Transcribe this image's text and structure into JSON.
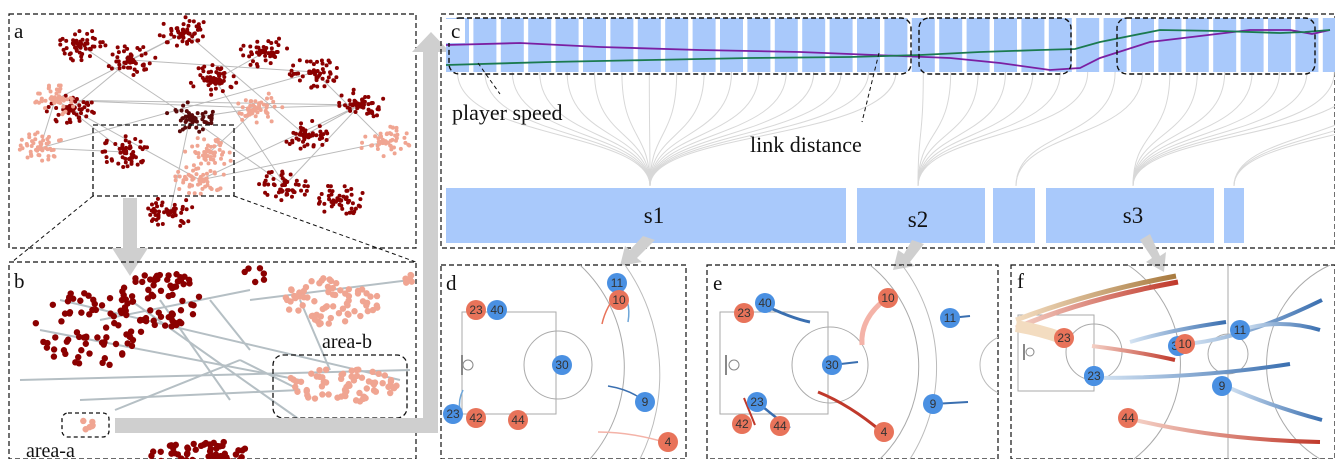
{
  "panels": {
    "a": {
      "label": "a"
    },
    "b": {
      "label": "b",
      "area_a": "area-a",
      "area_b": "area-b"
    },
    "c": {
      "label": "c",
      "annotation_speed": "player speed",
      "annotation_link": "link distance",
      "segments": [
        "s1",
        "s2",
        "s3"
      ]
    },
    "d": {
      "label": "d",
      "players": [
        {
          "num": "11",
          "team": "blue"
        },
        {
          "num": "10",
          "team": "red"
        },
        {
          "num": "23",
          "team": "red"
        },
        {
          "num": "40",
          "team": "blue"
        },
        {
          "num": "30",
          "team": "blue"
        },
        {
          "num": "9",
          "team": "blue"
        },
        {
          "num": "23",
          "team": "blue"
        },
        {
          "num": "42",
          "team": "red"
        },
        {
          "num": "44",
          "team": "red"
        },
        {
          "num": "4",
          "team": "red"
        }
      ]
    },
    "e": {
      "label": "e",
      "players": [
        {
          "num": "10",
          "team": "red"
        },
        {
          "num": "23",
          "team": "red"
        },
        {
          "num": "40",
          "team": "blue"
        },
        {
          "num": "30",
          "team": "blue"
        },
        {
          "num": "11",
          "team": "blue"
        },
        {
          "num": "23",
          "team": "blue"
        },
        {
          "num": "42",
          "team": "red"
        },
        {
          "num": "44",
          "team": "red"
        },
        {
          "num": "9",
          "team": "blue"
        },
        {
          "num": "4",
          "team": "red"
        }
      ]
    },
    "f": {
      "label": "f",
      "players": [
        {
          "num": "23",
          "team": "red"
        },
        {
          "num": "42",
          "team": "blue"
        },
        {
          "num": "30",
          "team": "blue"
        },
        {
          "num": "10",
          "team": "red"
        },
        {
          "num": "11",
          "team": "blue"
        },
        {
          "num": "23",
          "team": "blue"
        },
        {
          "num": "9",
          "team": "blue"
        },
        {
          "num": "44",
          "team": "red"
        }
      ]
    }
  },
  "colors": {
    "red_team": "#e8735a",
    "blue_team": "#4a90e2",
    "timeline_block": "#a9c9fb",
    "speed_line": "#7b1fa2",
    "link_line": "#1b7a4f",
    "cluster_dark": "#8b0000",
    "cluster_light": "#f0a592",
    "arrow": "#cfcfcf"
  }
}
